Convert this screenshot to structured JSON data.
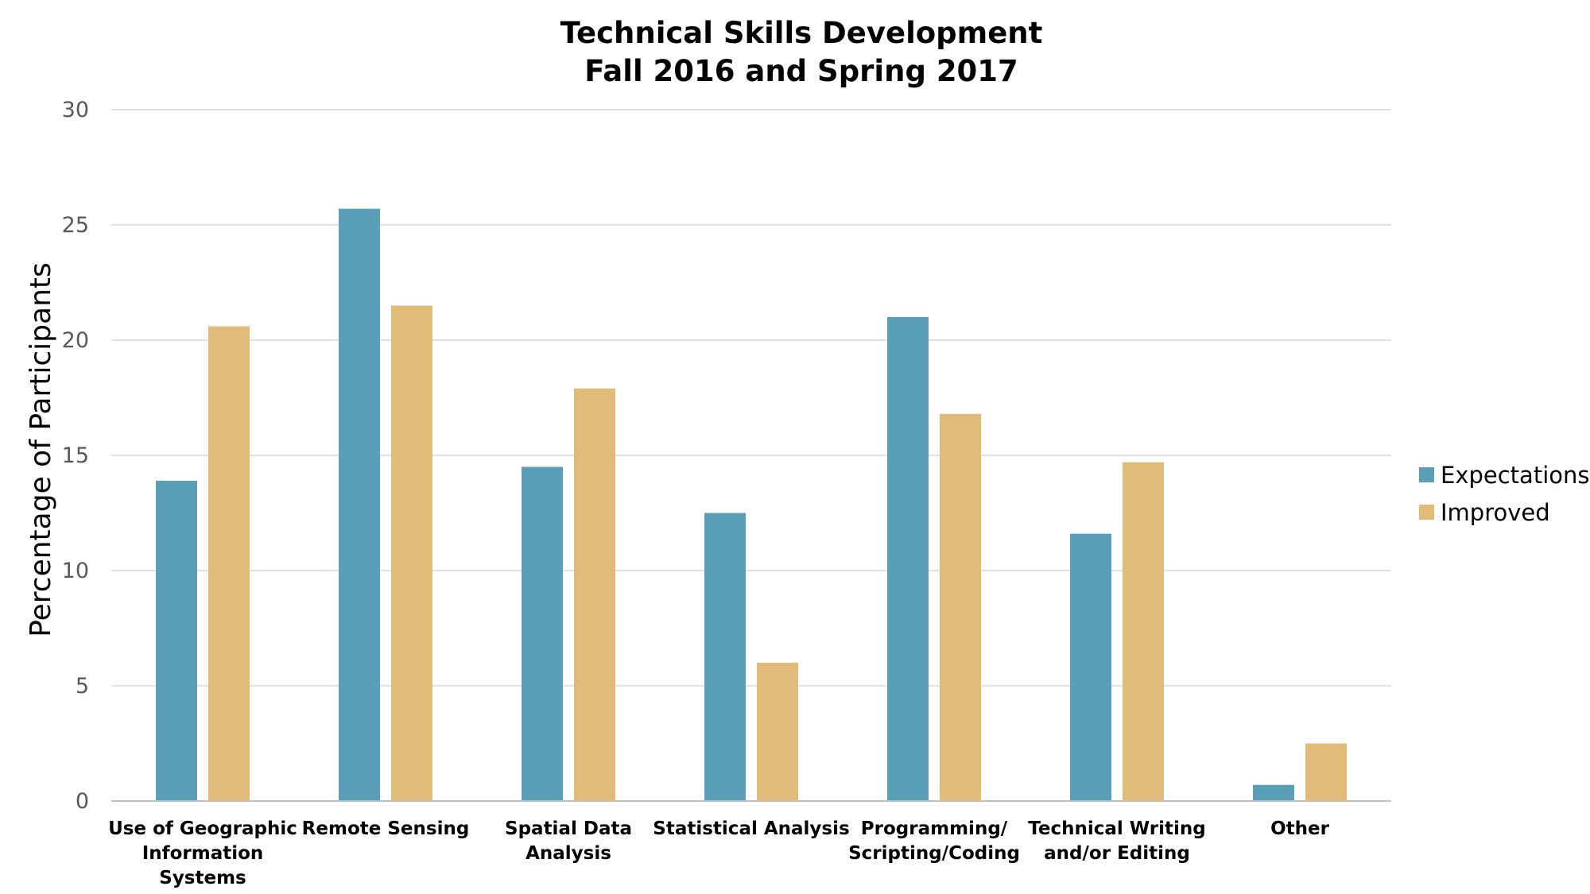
{
  "chart_data": {
    "type": "bar",
    "title": [
      "Technical Skills Development",
      "Fall 2016 and Spring 2017"
    ],
    "ylabel": "Percentage of Participants",
    "xlabel": "",
    "ylim": [
      0,
      30
    ],
    "yticks": [
      0,
      5,
      10,
      15,
      20,
      25,
      30
    ],
    "grid": true,
    "legend_position": "right",
    "categories": [
      [
        "Use of Geographic",
        "Information",
        "Systems"
      ],
      [
        "Remote Sensing"
      ],
      [
        "Spatial Data",
        "Analysis"
      ],
      [
        "Statistical Analysis"
      ],
      [
        "Programming/",
        "Scripting/Coding"
      ],
      [
        "Technical Writing",
        "and/or Editing"
      ],
      [
        "Other"
      ]
    ],
    "series": [
      {
        "name": "Expectations",
        "color": "#5b9eb7",
        "values": [
          13.9,
          25.7,
          14.5,
          12.5,
          21.0,
          11.6,
          0.7
        ]
      },
      {
        "name": "Improved",
        "color": "#e0bc78",
        "values": [
          20.6,
          21.5,
          17.9,
          6.0,
          16.8,
          14.7,
          2.5
        ]
      }
    ]
  }
}
